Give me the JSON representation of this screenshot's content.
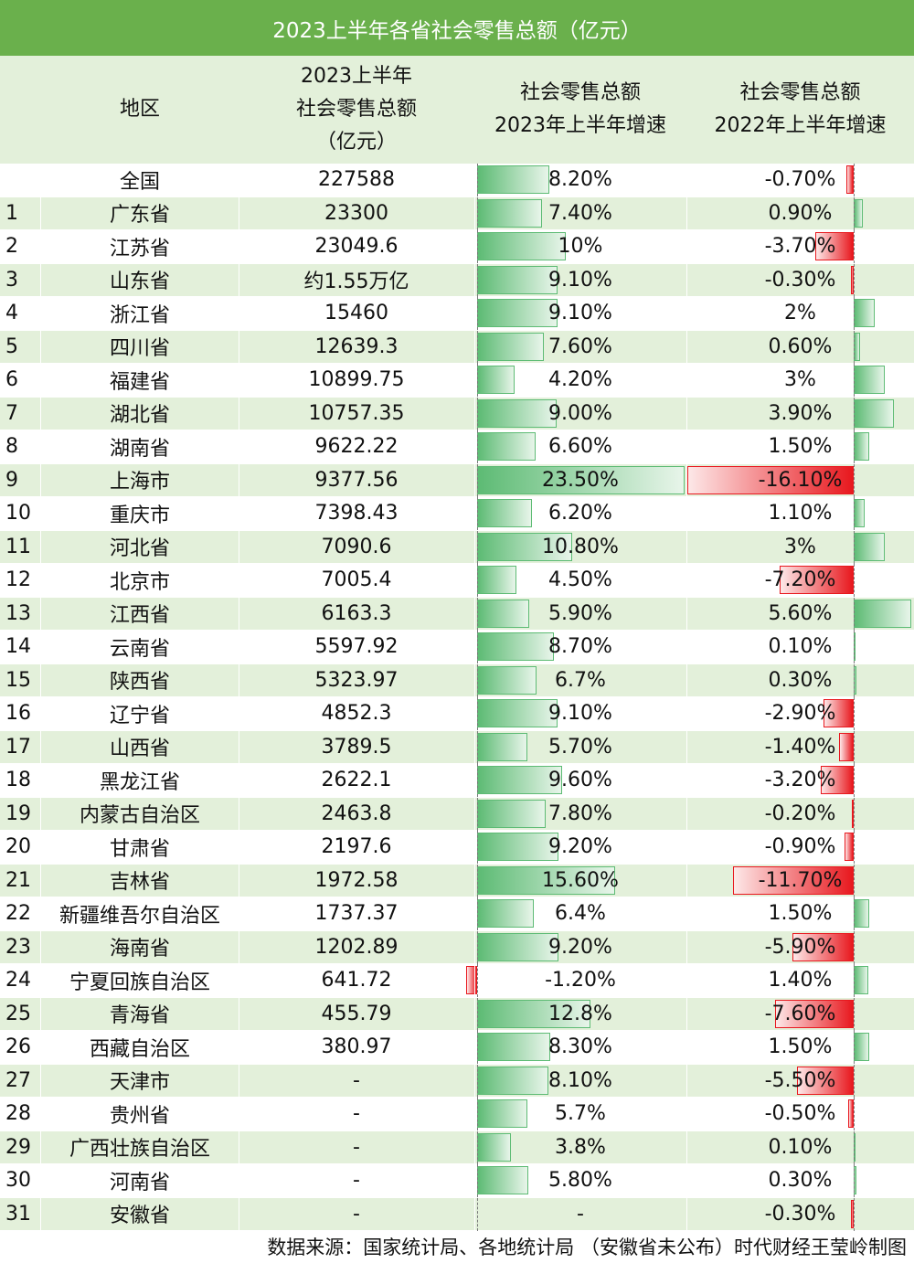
{
  "title": "2023上半年各省社会零售总额（亿元）",
  "headers": {
    "region": "地区",
    "value_l1": "2023上半年",
    "value_l2": "社会零售总额",
    "value_l3": "（亿元）",
    "g23_l1": "社会零售总额",
    "g23_l2": "2023年上半年增速",
    "g22_l1": "社会零售总额",
    "g22_l2": "2022年上半年增速"
  },
  "colors": {
    "header_green": "#6ab04c",
    "stripe": "#e3f0da",
    "bar_pos": "#5dbb74",
    "bar_neg": "#e8181e"
  },
  "rows": [
    {
      "idx": "",
      "region": "全国",
      "value": "227588",
      "g23": "8.20%",
      "g23_num": 8.2,
      "g22": "-0.70%",
      "g22_num": -0.7
    },
    {
      "idx": "1",
      "region": "广东省",
      "value": "23300",
      "g23": "7.40%",
      "g23_num": 7.4,
      "g22": "0.90%",
      "g22_num": 0.9
    },
    {
      "idx": "2",
      "region": "江苏省",
      "value": "23049.6",
      "g23": "10%",
      "g23_num": 10,
      "g22": "-3.70%",
      "g22_num": -3.7
    },
    {
      "idx": "3",
      "region": "山东省",
      "value": "约1.55万亿",
      "g23": "9.10%",
      "g23_num": 9.1,
      "g22": "-0.30%",
      "g22_num": -0.3
    },
    {
      "idx": "4",
      "region": "浙江省",
      "value": "15460",
      "g23": "9.10%",
      "g23_num": 9.1,
      "g22": "2%",
      "g22_num": 2
    },
    {
      "idx": "5",
      "region": "四川省",
      "value": "12639.3",
      "g23": "7.60%",
      "g23_num": 7.6,
      "g22": "0.60%",
      "g22_num": 0.6
    },
    {
      "idx": "6",
      "region": "福建省",
      "value": "10899.75",
      "g23": "4.20%",
      "g23_num": 4.2,
      "g22": "3%",
      "g22_num": 3
    },
    {
      "idx": "7",
      "region": "湖北省",
      "value": "10757.35",
      "g23": "9.00%",
      "g23_num": 9.0,
      "g22": "3.90%",
      "g22_num": 3.9
    },
    {
      "idx": "8",
      "region": "湖南省",
      "value": "9622.22",
      "g23": "6.60%",
      "g23_num": 6.6,
      "g22": "1.50%",
      "g22_num": 1.5
    },
    {
      "idx": "9",
      "region": "上海市",
      "value": "9377.56",
      "g23": "23.50%",
      "g23_num": 23.5,
      "g22": "-16.10%",
      "g22_num": -16.1
    },
    {
      "idx": "10",
      "region": "重庆市",
      "value": "7398.43",
      "g23": "6.20%",
      "g23_num": 6.2,
      "g22": "1.10%",
      "g22_num": 1.1
    },
    {
      "idx": "11",
      "region": "河北省",
      "value": "7090.6",
      "g23": "10.80%",
      "g23_num": 10.8,
      "g22": "3%",
      "g22_num": 3
    },
    {
      "idx": "12",
      "region": "北京市",
      "value": "7005.4",
      "g23": "4.50%",
      "g23_num": 4.5,
      "g22": "-7.20%",
      "g22_num": -7.2
    },
    {
      "idx": "13",
      "region": "江西省",
      "value": "6163.3",
      "g23": "5.90%",
      "g23_num": 5.9,
      "g22": "5.60%",
      "g22_num": 5.6
    },
    {
      "idx": "14",
      "region": "云南省",
      "value": "5597.92",
      "g23": "8.70%",
      "g23_num": 8.7,
      "g22": "0.10%",
      "g22_num": 0.1
    },
    {
      "idx": "15",
      "region": "陕西省",
      "value": "5323.97",
      "g23": "6.7%",
      "g23_num": 6.7,
      "g22": "0.30%",
      "g22_num": 0.3
    },
    {
      "idx": "16",
      "region": "辽宁省",
      "value": "4852.3",
      "g23": "9.10%",
      "g23_num": 9.1,
      "g22": "-2.90%",
      "g22_num": -2.9
    },
    {
      "idx": "17",
      "region": "山西省",
      "value": "3789.5",
      "g23": "5.70%",
      "g23_num": 5.7,
      "g22": "-1.40%",
      "g22_num": -1.4
    },
    {
      "idx": "18",
      "region": "黑龙江省",
      "value": "2622.1",
      "g23": "9.60%",
      "g23_num": 9.6,
      "g22": "-3.20%",
      "g22_num": -3.2
    },
    {
      "idx": "19",
      "region": "内蒙古自治区",
      "value": "2463.8",
      "g23": "7.80%",
      "g23_num": 7.8,
      "g22": "-0.20%",
      "g22_num": -0.2
    },
    {
      "idx": "20",
      "region": "甘肃省",
      "value": "2197.6",
      "g23": "9.20%",
      "g23_num": 9.2,
      "g22": "-0.90%",
      "g22_num": -0.9
    },
    {
      "idx": "21",
      "region": "吉林省",
      "value": "1972.58",
      "g23": "15.60%",
      "g23_num": 15.6,
      "g22": "-11.70%",
      "g22_num": -11.7
    },
    {
      "idx": "22",
      "region": "新疆维吾尔自治区",
      "value": "1737.37",
      "g23": "6.4%",
      "g23_num": 6.4,
      "g22": "1.50%",
      "g22_num": 1.5
    },
    {
      "idx": "23",
      "region": "海南省",
      "value": "1202.89",
      "g23": "9.20%",
      "g23_num": 9.2,
      "g22": "-5.90%",
      "g22_num": -5.9
    },
    {
      "idx": "24",
      "region": "宁夏回族自治区",
      "value": "641.72",
      "g23": "-1.20%",
      "g23_num": -1.2,
      "g22": "1.40%",
      "g22_num": 1.4
    },
    {
      "idx": "25",
      "region": "青海省",
      "value": "455.79",
      "g23": "12.8%",
      "g23_num": 12.8,
      "g22": "-7.60%",
      "g22_num": -7.6
    },
    {
      "idx": "26",
      "region": "西藏自治区",
      "value": "380.97",
      "g23": "8.30%",
      "g23_num": 8.3,
      "g22": "1.50%",
      "g22_num": 1.5
    },
    {
      "idx": "27",
      "region": "天津市",
      "value": "-",
      "g23": "8.10%",
      "g23_num": 8.1,
      "g22": "-5.50%",
      "g22_num": -5.5
    },
    {
      "idx": "28",
      "region": "贵州省",
      "value": "-",
      "g23": "5.7%",
      "g23_num": 5.7,
      "g22": "-0.50%",
      "g22_num": -0.5
    },
    {
      "idx": "29",
      "region": "广西壮族自治区",
      "value": "-",
      "g23": "3.8%",
      "g23_num": 3.8,
      "g22": "0.10%",
      "g22_num": 0.1
    },
    {
      "idx": "30",
      "region": "河南省",
      "value": "-",
      "g23": "5.80%",
      "g23_num": 5.8,
      "g22": "0.30%",
      "g22_num": 0.3
    },
    {
      "idx": "31",
      "region": "安徽省",
      "value": "-",
      "g23": "-",
      "g23_num": null,
      "g22": "-0.30%",
      "g22_num": -0.3
    }
  ],
  "footer": "数据来源：国家统计局、各地统计局 （安徽省未公布）时代财经王莹岭制图"
}
